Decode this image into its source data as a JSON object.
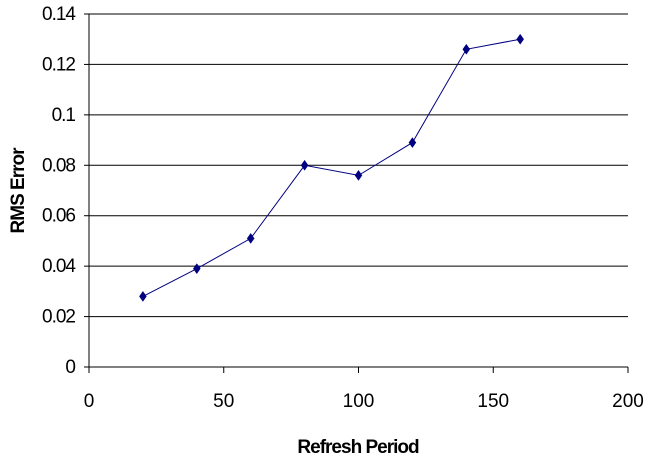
{
  "chart_data": {
    "type": "scatter",
    "title": "",
    "xlabel": "Refresh Period",
    "ylabel": "RMS Error",
    "xlim": [
      0,
      200
    ],
    "ylim": [
      0,
      0.14
    ],
    "xticks": [
      "0",
      "50",
      "100",
      "150",
      "200"
    ],
    "yticks": [
      "0",
      "0.02",
      "0.04",
      "0.06",
      "0.08",
      "0.1",
      "0.12",
      "0.14"
    ],
    "grid": "horizontal",
    "legend": "none",
    "series": [
      {
        "x": [
          20,
          40,
          60,
          80,
          100,
          120,
          140,
          160
        ],
        "y": [
          0.028,
          0.039,
          0.051,
          0.08,
          0.076,
          0.089,
          0.126,
          0.13
        ],
        "color": "#000080",
        "marker": "diamond",
        "line": true
      }
    ]
  }
}
